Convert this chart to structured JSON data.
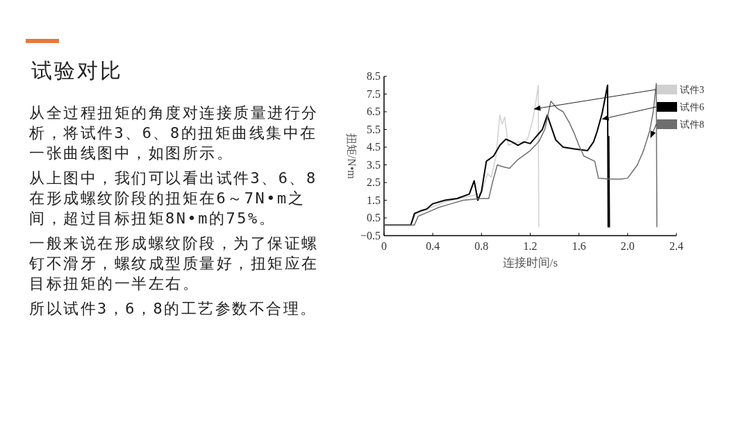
{
  "chart_data": {
    "type": "line",
    "title": "试验对比",
    "xlabel": "连接时间/s",
    "ylabel": "扭矩/N•m",
    "annotations": [
      "从全过程扭矩的角度对连接质量进行分析，将试件3、6、8的扭矩曲线集中在一张曲线图中，如图所示。",
      "从上图中，我们可以看出试件3、6、8在形成螺纹阶段的扭矩在6～7N•m之间，超过目标扭矩8N•m的75%。",
      "一般来说在形成螺纹阶段，为了保证螺钉不滑牙，螺纹成型质量好，扭矩应在目标扭矩的一半左右。",
      "所以试件3，6，8的工艺参数不合理。"
    ],
    "xlim": [
      0,
      2.4
    ],
    "xticks": [
      0,
      0.4,
      0.8,
      1.2,
      1.6,
      {
        "value": 2.0,
        "label": "2.0"
      },
      2.4
    ],
    "ylim": [
      -0.5,
      8.5
    ],
    "yticks": [
      {
        "value": -0.5,
        "label": "−0.5"
      },
      0.5,
      1.5,
      2.5,
      3.5,
      4.5,
      5.5,
      6.5,
      7.5,
      8.5
    ],
    "grid": false,
    "legend": "top right",
    "line_style": "solid",
    "series": [
      {
        "name": "试件3",
        "color": "#d0d0d0",
        "x": [
          0,
          0.22,
          0.26,
          0.35,
          0.5,
          0.65,
          0.75,
          0.8,
          0.85,
          0.88,
          0.92,
          0.95,
          0.97,
          0.99,
          1.02,
          1.05,
          1.1,
          1.15,
          1.18,
          1.22,
          1.25,
          1.266,
          1.27
        ],
        "values": [
          0.1,
          0.1,
          0.7,
          1.0,
          1.4,
          1.65,
          1.8,
          1.9,
          3.0,
          2.8,
          4.0,
          6.3,
          5.8,
          6.2,
          4.6,
          4.7,
          4.8,
          4.7,
          5.0,
          6.0,
          7.2,
          8.0,
          0.0
        ]
      },
      {
        "name": "试件6",
        "color": "#000000",
        "x": [
          0,
          0.22,
          0.25,
          0.3,
          0.35,
          0.4,
          0.5,
          0.6,
          0.7,
          0.74,
          0.77,
          0.8,
          0.84,
          0.9,
          0.95,
          1.0,
          1.05,
          1.1,
          1.15,
          1.2,
          1.25,
          1.3,
          1.34,
          1.37,
          1.41,
          1.47,
          1.56,
          1.67,
          1.72,
          1.75,
          1.79,
          1.81,
          1.835,
          1.84,
          1.845,
          1.85
        ],
        "values": [
          0.1,
          0.1,
          0.75,
          0.9,
          1.0,
          1.3,
          1.5,
          1.6,
          1.85,
          2.6,
          1.5,
          2.0,
          3.7,
          4.0,
          4.6,
          4.95,
          4.8,
          4.6,
          4.8,
          4.7,
          5.1,
          5.5,
          6.3,
          5.7,
          4.9,
          4.5,
          4.4,
          4.3,
          4.8,
          5.4,
          6.4,
          7.1,
          8.0,
          0.0,
          5.1,
          0.0
        ]
      },
      {
        "name": "试件8",
        "color": "#6e6e6e",
        "x": [
          0,
          0.25,
          0.28,
          0.35,
          0.45,
          0.55,
          0.65,
          0.8,
          0.86,
          0.89,
          0.93,
          0.97,
          1.03,
          1.1,
          1.2,
          1.27,
          1.32,
          1.37,
          1.42,
          1.47,
          1.52,
          1.56,
          1.6,
          1.64,
          1.73,
          1.76,
          1.85,
          1.95,
          2.0,
          2.08,
          2.13,
          2.18,
          2.21,
          2.235,
          2.24
        ],
        "values": [
          0.1,
          0.1,
          0.6,
          0.8,
          1.1,
          1.3,
          1.5,
          1.6,
          1.6,
          2.5,
          3.5,
          3.4,
          3.3,
          3.8,
          4.3,
          4.8,
          5.5,
          7.1,
          6.7,
          6.5,
          5.9,
          5.3,
          4.6,
          4.0,
          3.7,
          2.75,
          2.7,
          2.7,
          2.75,
          3.5,
          4.3,
          5.4,
          6.5,
          8.1,
          0.0
        ]
      }
    ]
  }
}
